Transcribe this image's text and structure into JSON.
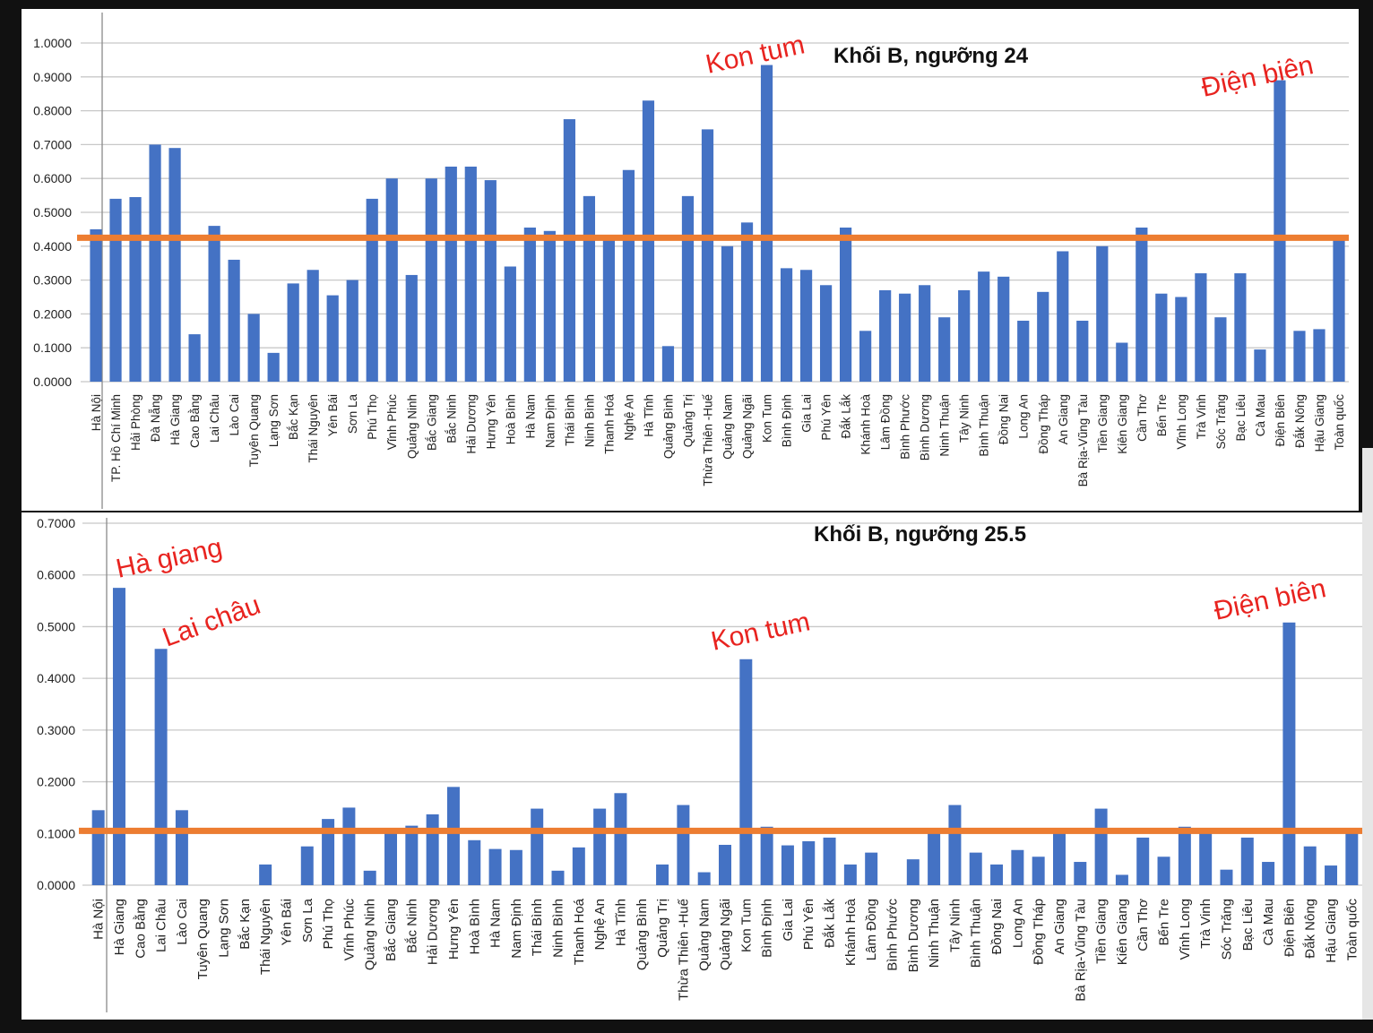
{
  "colors": {
    "bar": "#4472c4",
    "threshold": "#ed7d31",
    "annotation": "#e8231f",
    "grid": "#c8c8c8",
    "text": "#222222"
  },
  "chart_data": [
    {
      "type": "bar",
      "title": "Khối B, ngưỡng 24",
      "ylim": [
        0,
        1.0
      ],
      "yticks": [
        "0.0000",
        "0.1000",
        "0.2000",
        "0.3000",
        "0.4000",
        "0.5000",
        "0.6000",
        "0.7000",
        "0.8000",
        "0.9000",
        "1.0000"
      ],
      "grid": true,
      "threshold": 0.425,
      "categories": [
        "Hà Nội",
        "TP. Hồ Chí Minh",
        "Hải Phòng",
        "Đà Nẵng",
        "Hà Giang",
        "Cao Bằng",
        "Lai Châu",
        "Lào Cai",
        "Tuyên Quang",
        "Lạng Sơn",
        "Bắc Kạn",
        "Thái Nguyên",
        "Yên Bái",
        "Sơn La",
        "Phú Thọ",
        "Vĩnh Phúc",
        "Quảng Ninh",
        "Bắc Giang",
        "Bắc Ninh",
        "Hải Dương",
        "Hưng Yên",
        "Hoà Bình",
        "Hà Nam",
        "Nam Định",
        "Thái Bình",
        "Ninh Bình",
        "Thanh Hoá",
        "Nghệ An",
        "Hà Tĩnh",
        "Quảng Bình",
        "Quảng Trị",
        "Thừa Thiên -Huế",
        "Quảng Nam",
        "Quảng Ngãi",
        "Kon Tum",
        "Bình Định",
        "Gia Lai",
        "Phú Yên",
        "Đắk Lắk",
        "Khánh Hoà",
        "Lâm Đồng",
        "Bình Phước",
        "Bình Dương",
        "Ninh Thuận",
        "Tây Ninh",
        "Bình Thuận",
        "Đồng Nai",
        "Long An",
        "Đồng Tháp",
        "An Giang",
        "Bà Rịa-Vũng Tàu",
        "Tiền Giang",
        "Kiên Giang",
        "Cần Thơ",
        "Bến Tre",
        "Vĩnh Long",
        "Trà Vinh",
        "Sóc Trăng",
        "Bạc Liêu",
        "Cà Mau",
        "Điện Biên",
        "Đắk Nông",
        "Hậu Giang",
        "Toàn quốc"
      ],
      "values": [
        0.45,
        0.54,
        0.545,
        0.7,
        0.69,
        0.14,
        0.46,
        0.36,
        0.2,
        0.085,
        0.29,
        0.33,
        0.255,
        0.3,
        0.54,
        0.6,
        0.315,
        0.6,
        0.635,
        0.635,
        0.595,
        0.34,
        0.455,
        0.445,
        0.775,
        0.548,
        0.425,
        0.625,
        0.83,
        0.105,
        0.548,
        0.745,
        0.4,
        0.47,
        0.935,
        0.335,
        0.33,
        0.285,
        0.455,
        0.15,
        0.27,
        0.26,
        0.285,
        0.19,
        0.27,
        0.325,
        0.31,
        0.18,
        0.265,
        0.385,
        0.18,
        0.4,
        0.115,
        0.455,
        0.26,
        0.25,
        0.32,
        0.19,
        0.32,
        0.095,
        0.89,
        0.15,
        0.155,
        0.42
      ],
      "annotations": [
        "Kon tum",
        "Điện biên"
      ]
    },
    {
      "type": "bar",
      "title": "Khối B, ngưỡng 25.5",
      "ylim": [
        0,
        0.7
      ],
      "yticks": [
        "0.0000",
        "0.1000",
        "0.2000",
        "0.3000",
        "0.4000",
        "0.5000",
        "0.6000",
        "0.7000"
      ],
      "grid": true,
      "threshold": 0.105,
      "categories": [
        "Hà Nội",
        "Hà Giang",
        "Cao Bằng",
        "Lai Châu",
        "Lào Cai",
        "Tuyên Quang",
        "Lạng Sơn",
        "Bắc Kạn",
        "Thái Nguyên",
        "Yên Bái",
        "Sơn La",
        "Phú Thọ",
        "Vĩnh Phúc",
        "Quảng Ninh",
        "Bắc Giang",
        "Bắc Ninh",
        "Hải Dương",
        "Hưng Yên",
        "Hoà Bình",
        "Hà Nam",
        "Nam Định",
        "Thái Bình",
        "Ninh Bình",
        "Thanh Hoá",
        "Nghệ An",
        "Hà Tĩnh",
        "Quảng Bình",
        "Quảng Trị",
        "Thừa Thiên -Huế",
        "Quảng Nam",
        "Quảng Ngãi",
        "Kon Tum",
        "Bình Định",
        "Gia Lai",
        "Phú Yên",
        "Đắk Lắk",
        "Khánh Hoà",
        "Lâm Đồng",
        "Bình Phước",
        "Bình Dương",
        "Ninh Thuận",
        "Tây Ninh",
        "Bình Thuận",
        "Đồng Nai",
        "Long An",
        "Đồng Tháp",
        "An Giang",
        "Bà Rịa-Vũng Tàu",
        "Tiền Giang",
        "Kiên Giang",
        "Cần Thơ",
        "Bến Tre",
        "Vĩnh Long",
        "Trà Vinh",
        "Sóc Trăng",
        "Bạc Liêu",
        "Cà Mau",
        "Điện Biên",
        "Đắk Nông",
        "Hậu Giang",
        "Toàn quốc"
      ],
      "values": [
        0.145,
        0.575,
        0,
        0.457,
        0.145,
        0,
        0,
        0,
        0.04,
        0,
        0.075,
        0.128,
        0.15,
        0.028,
        0.1,
        0.115,
        0.137,
        0.19,
        0.087,
        0.07,
        0.068,
        0.148,
        0.028,
        0.073,
        0.148,
        0.178,
        0,
        0.04,
        0.155,
        0.025,
        0.078,
        0.437,
        0.113,
        0.077,
        0.085,
        0.092,
        0.04,
        0.063,
        0,
        0.05,
        0.1,
        0.155,
        0.063,
        0.04,
        0.068,
        0.055,
        0.1,
        0.045,
        0.148,
        0.02,
        0.092,
        0.055,
        0.113,
        0.1,
        0.03,
        0.092,
        0.045,
        0.508,
        0.075,
        0.038,
        0.1
      ],
      "annotations": [
        "Hà giang",
        "Lai châu",
        "Kon tum",
        "Điện biên"
      ]
    }
  ]
}
